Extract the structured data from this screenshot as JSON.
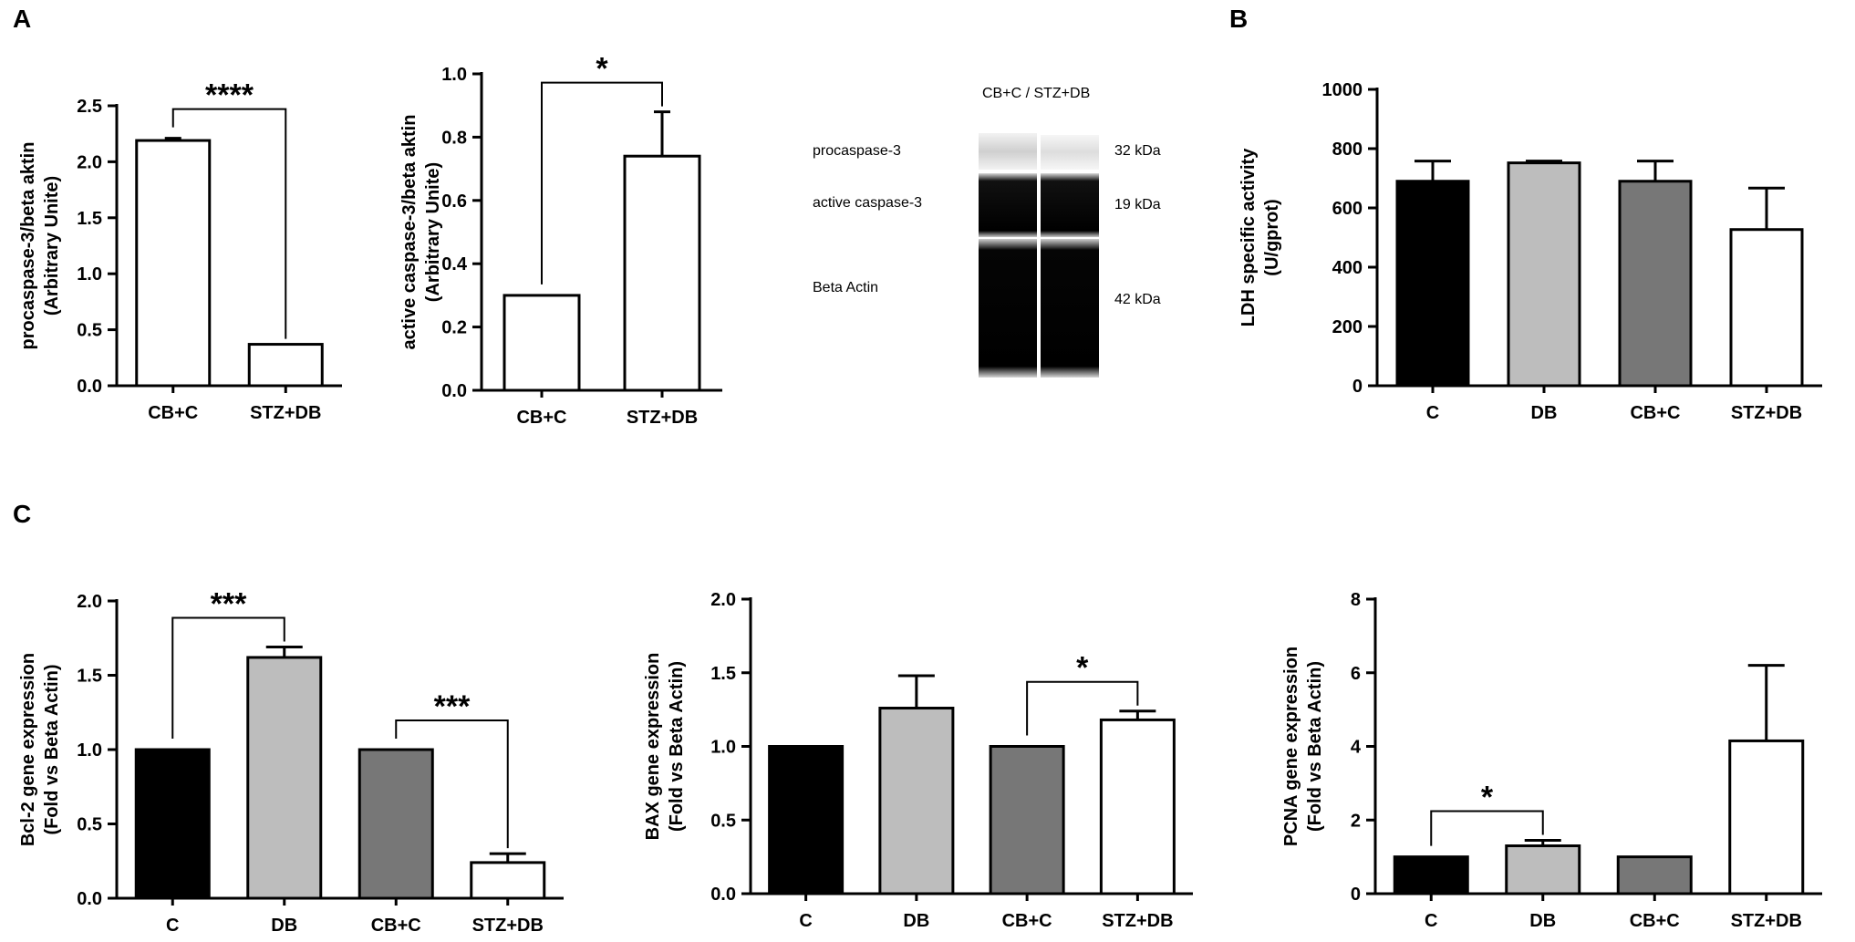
{
  "panel_letters": [
    "A",
    "B",
    "C"
  ],
  "blot": {
    "header": "CB+C / STZ+DB",
    "rows": [
      {
        "label": "procaspase-3",
        "kda": "32 kDa"
      },
      {
        "label": "active caspase-3",
        "kda": "19 kDa"
      },
      {
        "label": "Beta Actin",
        "kda": "42 kDa"
      }
    ]
  },
  "chart_data": [
    {
      "type": "bar",
      "panel": "A",
      "ylabel": [
        "procaspase-3/beta aktin",
        "(Arbitrary Unite)"
      ],
      "categories": [
        "CB+C",
        "STZ+DB"
      ],
      "values": [
        2.19,
        0.37
      ],
      "errors": [
        0.02,
        0
      ],
      "colors": [
        "#ffffff",
        "#ffffff"
      ],
      "ylim": [
        0,
        2.5
      ],
      "yticks": [
        "0.0",
        "0.5",
        "1.0",
        "1.5",
        "2.0",
        "2.5"
      ],
      "brackets": [
        {
          "from": 0,
          "to": 1,
          "label": "****"
        }
      ]
    },
    {
      "type": "bar",
      "panel": "A",
      "ylabel": [
        "active caspase-3/beta aktin",
        "(Arbitrary Unite)"
      ],
      "categories": [
        "CB+C",
        "STZ+DB"
      ],
      "values": [
        0.3,
        0.74
      ],
      "errors": [
        0,
        0.14
      ],
      "colors": [
        "#ffffff",
        "#ffffff"
      ],
      "ylim": [
        0,
        1.0
      ],
      "yticks": [
        "0.0",
        "0.2",
        "0.4",
        "0.6",
        "0.8",
        "1.0"
      ],
      "brackets": [
        {
          "from": 0,
          "to": 1,
          "label": "*"
        }
      ]
    },
    {
      "type": "bar",
      "panel": "B",
      "ylabel": [
        "LDH specific activity",
        "(U/gprot)"
      ],
      "categories": [
        "C",
        "DB",
        "CB+C",
        "STZ+DB"
      ],
      "values": [
        690,
        752,
        690,
        527
      ],
      "errors": [
        68,
        6,
        68,
        140
      ],
      "colors": [
        "#000000",
        "#bdbdbd",
        "#777777",
        "#ffffff"
      ],
      "ylim": [
        0,
        1000
      ],
      "yticks": [
        "0",
        "200",
        "400",
        "600",
        "800",
        "1000"
      ],
      "brackets": []
    },
    {
      "type": "bar",
      "panel": "C",
      "ylabel": [
        "Bcl-2 gene expression",
        "(Fold vs Beta Actin)"
      ],
      "categories": [
        "C",
        "DB",
        "CB+C",
        "STZ+DB"
      ],
      "values": [
        1.0,
        1.62,
        1.0,
        0.24
      ],
      "errors": [
        0,
        0.07,
        0,
        0.06
      ],
      "colors": [
        "#000000",
        "#bdbdbd",
        "#777777",
        "#ffffff"
      ],
      "ylim": [
        0,
        2.0
      ],
      "yticks": [
        "0.0",
        "0.5",
        "1.0",
        "1.5",
        "2.0"
      ],
      "brackets": [
        {
          "from": 0,
          "to": 1,
          "label": "***"
        },
        {
          "from": 2,
          "to": 3,
          "label": "***"
        }
      ]
    },
    {
      "type": "bar",
      "panel": "C",
      "ylabel": [
        "BAX gene expression",
        "(Fold vs Beta Actin)"
      ],
      "categories": [
        "C",
        "DB",
        "CB+C",
        "STZ+DB"
      ],
      "values": [
        1.0,
        1.26,
        1.0,
        1.18
      ],
      "errors": [
        0,
        0.22,
        0,
        0.06
      ],
      "colors": [
        "#000000",
        "#bdbdbd",
        "#777777",
        "#ffffff"
      ],
      "ylim": [
        0,
        2.0
      ],
      "yticks": [
        "0.0",
        "0.5",
        "1.0",
        "1.5",
        "2.0"
      ],
      "brackets": [
        {
          "from": 2,
          "to": 3,
          "label": "*"
        }
      ]
    },
    {
      "type": "bar",
      "panel": "C",
      "ylabel": [
        "PCNA gene expression",
        "(Fold vs Beta Actin)"
      ],
      "categories": [
        "C",
        "DB",
        "CB+C",
        "STZ+DB"
      ],
      "values": [
        1.0,
        1.3,
        1.0,
        4.15
      ],
      "errors": [
        0,
        0.15,
        0,
        2.05
      ],
      "colors": [
        "#000000",
        "#bdbdbd",
        "#777777",
        "#ffffff"
      ],
      "ylim": [
        0,
        8
      ],
      "yticks": [
        "0",
        "2",
        "4",
        "6",
        "8"
      ],
      "brackets": [
        {
          "from": 0,
          "to": 1,
          "label": "*"
        }
      ]
    }
  ]
}
